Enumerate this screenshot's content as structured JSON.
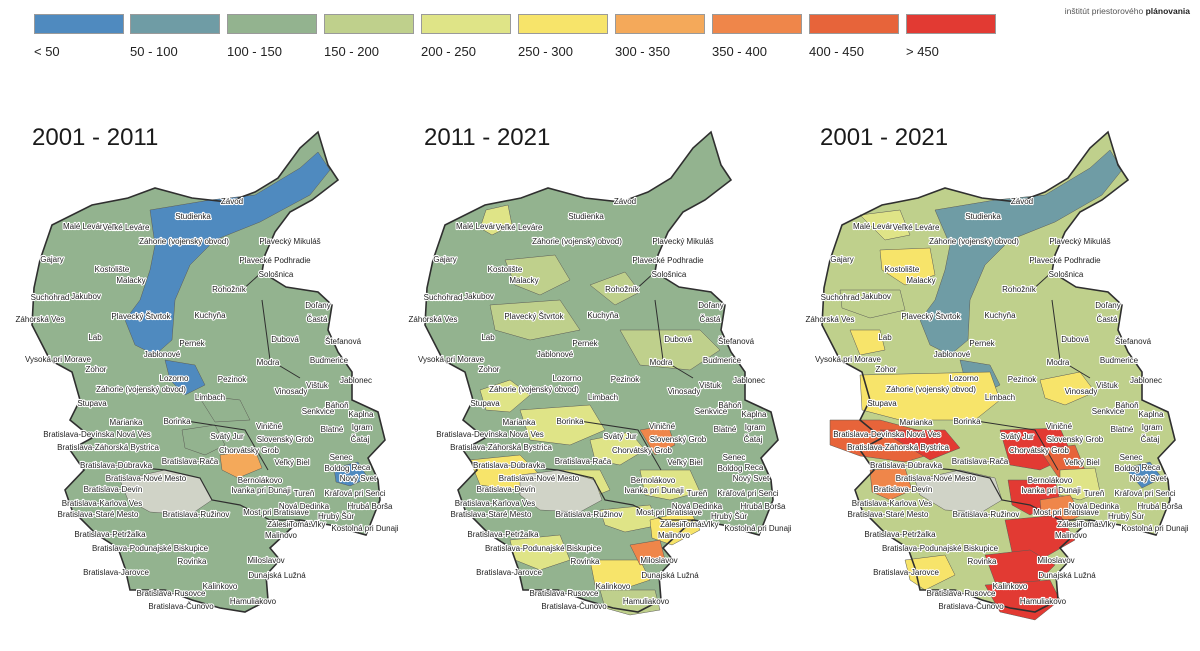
{
  "brand": {
    "prefix": "inštitút priestorového ",
    "bold": "plánovania"
  },
  "legend": [
    {
      "label": "< 50",
      "color": "#4f8abf"
    },
    {
      "label": "50 - 100",
      "color": "#6f9ca5"
    },
    {
      "label": "100 - 150",
      "color": "#93b38f"
    },
    {
      "label": "150 - 200",
      "color": "#bfd08c"
    },
    {
      "label": "200 - 250",
      "color": "#dfe487"
    },
    {
      "label": "250 - 300",
      "color": "#f7e46a"
    },
    {
      "label": "300 - 350",
      "color": "#f4a95a"
    },
    {
      "label": "350 - 400",
      "color": "#ef864a"
    },
    {
      "label": "400 - 450",
      "color": "#e7643a"
    },
    {
      "label": "> 450",
      "color": "#e23a33"
    }
  ],
  "maps": [
    {
      "title": "2001 - 2011"
    },
    {
      "title": "2011 - 2021"
    },
    {
      "title": "2001 - 2021"
    }
  ],
  "places": [
    "Závod",
    "Studienka",
    "Malé Leváre",
    "Veľké Leváre",
    "Záhorie (vojenský obvod)",
    "Plavecký Mikuláš",
    "Gajary",
    "Kostolište",
    "Plavecké Podhradie",
    "Malacky",
    "Sološnica",
    "Suchohrad",
    "Jakubov",
    "Rohožník",
    "Doľany",
    "Záhorská Ves",
    "Plavecký Štvrtok",
    "Kuchyňa",
    "Častá",
    "Lab",
    "Pernek",
    "Dubová",
    "Štefanová",
    "Jablonové",
    "Vysoká pri Morave",
    "Budmerice",
    "Modra",
    "Zohor",
    "Lozorno",
    "Pezinok",
    "Vištuk",
    "Jablonec",
    "Záhorie (vojenský obvod)",
    "Vinosady",
    "Limbach",
    "Stupava",
    "Senkvice",
    "Báhoň",
    "Marianka",
    "Borinka",
    "Kaplna",
    "Viničné",
    "Bratislava-Devínska Nová Ves",
    "Svätý Jur",
    "Blatné",
    "Igram",
    "Slovenský Grob",
    "Bratislava-Záhorská Bystrica",
    "Čataj",
    "Chorvátsky Grob",
    "Bratislava-Dúbravka",
    "Bratislava-Rača",
    "Senec",
    "Veľký Biel",
    "Boldog",
    "Reca",
    "Bernolákovo",
    "Nový Svet",
    "Bratislava-Nové Mesto",
    "Bratislava-Devín",
    "Ivanka pri Dunaji",
    "Tureň",
    "Kráľová pri Senci",
    "Bratislava-Karlova Ves",
    "Most pri Bratislave",
    "Nová Dedinka",
    "Hrubá Borša",
    "Bratislava-Staré Mesto",
    "Bratislava-Ružinov",
    "Zálesie",
    "Tomášov",
    "Vlky",
    "Hrubý Šúr",
    "Kostolná pri Dunaji",
    "Bratislava-Petržalka",
    "Malinovo",
    "Bratislava-Podunajské Biskupice",
    "Rovinka",
    "Miloslavov",
    "Bratislava-Jarovce",
    "Dunajská Lužná",
    "Kalinkovo",
    "Bratislava-Rusovce",
    "Bratislava-Čunovo",
    "Hamuliakovo"
  ]
}
